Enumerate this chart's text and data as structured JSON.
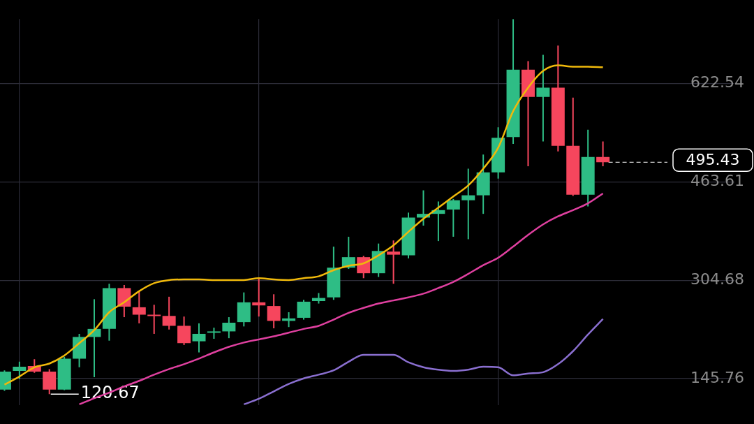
{
  "chart_data": {
    "type": "candlestick",
    "categories": [
      null,
      null,
      null,
      null,
      null,
      null,
      null,
      null,
      null,
      null,
      null,
      null,
      null,
      null,
      null,
      null,
      null,
      null,
      null,
      null,
      null,
      null,
      null,
      null,
      null,
      null,
      null,
      null,
      null,
      null,
      null,
      null,
      null,
      null,
      null,
      null,
      null,
      null,
      null,
      null,
      null
    ],
    "ohlc": [
      [
        128,
        159,
        126,
        157
      ],
      [
        158,
        173,
        145,
        165
      ],
      [
        166,
        177,
        155,
        157
      ],
      [
        157,
        161,
        120.67,
        128
      ],
      [
        128,
        181,
        127,
        178
      ],
      [
        178,
        218,
        164,
        213
      ],
      [
        213,
        274,
        148,
        226
      ],
      [
        226,
        299,
        207,
        292
      ],
      [
        292,
        297,
        245,
        262
      ],
      [
        261,
        288,
        235,
        249
      ],
      [
        249,
        265,
        218,
        247
      ],
      [
        247,
        278,
        225,
        231
      ],
      [
        231,
        246,
        200,
        203
      ],
      [
        206,
        235,
        188,
        218
      ],
      [
        220,
        228,
        210,
        222
      ],
      [
        222,
        245,
        211,
        236
      ],
      [
        237,
        285,
        230,
        269
      ],
      [
        269,
        309,
        246,
        264
      ],
      [
        263,
        282,
        227,
        239
      ],
      [
        239,
        253,
        229,
        243
      ],
      [
        244,
        273,
        241,
        270
      ],
      [
        271,
        284,
        267,
        276
      ],
      [
        277,
        359,
        273,
        325
      ],
      [
        325,
        375,
        323,
        342
      ],
      [
        342,
        344,
        308,
        316
      ],
      [
        316,
        364,
        310,
        352
      ],
      [
        351,
        369,
        299,
        346
      ],
      [
        345,
        414,
        340,
        406
      ],
      [
        406,
        450,
        393,
        412
      ],
      [
        412,
        432,
        368,
        418
      ],
      [
        419,
        436,
        375,
        434
      ],
      [
        434,
        485,
        371,
        442
      ],
      [
        442,
        508,
        412,
        479
      ],
      [
        479,
        552,
        469,
        535
      ],
      [
        536,
        727,
        525,
        645
      ],
      [
        645,
        659,
        489,
        601
      ],
      [
        601,
        669,
        529,
        616
      ],
      [
        616,
        684,
        513,
        522
      ],
      [
        522,
        600,
        441,
        443
      ],
      [
        443,
        548,
        424,
        504
      ],
      [
        504,
        529,
        489,
        495.43
      ]
    ],
    "colors": [
      "#2ebd85",
      "#2ebd85",
      "#f6465d",
      "#f6465d",
      "#2ebd85",
      "#2ebd85",
      "#2ebd85",
      "#2ebd85",
      "#f6465d",
      "#f6465d",
      "#f6465d",
      "#f6465d",
      "#f6465d",
      "#2ebd85",
      "#2ebd85",
      "#2ebd85",
      "#2ebd85",
      "#f6465d",
      "#f6465d",
      "#2ebd85",
      "#2ebd85",
      "#2ebd85",
      "#2ebd85",
      "#2ebd85",
      "#f6465d",
      "#2ebd85",
      "#f6465d",
      "#2ebd85",
      "#2ebd85",
      "#2ebd85",
      "#2ebd85",
      "#2ebd85",
      "#2ebd85",
      "#2ebd85",
      "#2ebd85",
      "#f6465d",
      "#2ebd85",
      "#f6465d",
      "#f6465d",
      "#2ebd85",
      "#f6465d"
    ],
    "series": [
      {
        "type": "line",
        "color": "#f0b90b",
        "values": [
          136,
          149,
          164,
          170,
          183,
          203,
          224,
          253,
          269,
          287,
          300,
          305,
          306,
          306,
          305,
          305,
          305,
          308,
          306,
          305,
          308,
          311,
          321,
          328,
          332,
          345,
          361,
          383,
          404,
          422,
          440,
          458,
          485,
          519,
          578,
          616,
          643,
          652,
          650,
          650,
          649
        ]
      },
      {
        "type": "line",
        "color": "#e040a0",
        "values": [
          null,
          null,
          null,
          null,
          null,
          104,
          114,
          123,
          133,
          142,
          152,
          161,
          169,
          178,
          188,
          197,
          204,
          209,
          214,
          220,
          226,
          231,
          241,
          252,
          260,
          267,
          272,
          277,
          283,
          292,
          302,
          315,
          329,
          341,
          359,
          378,
          395,
          408,
          418,
          429,
          445
        ]
      },
      {
        "type": "line",
        "color": "#8a6fd0",
        "values": [
          null,
          null,
          null,
          null,
          null,
          null,
          null,
          null,
          null,
          null,
          null,
          null,
          null,
          null,
          null,
          null,
          104,
          113,
          125,
          137,
          146,
          152,
          159,
          173,
          184,
          184,
          184,
          172,
          164,
          160,
          158,
          160,
          165,
          164,
          151,
          154,
          156,
          169,
          190,
          217,
          242
        ]
      }
    ],
    "ylim": [
      103,
      727
    ],
    "yticks": [
      145.76,
      304.68,
      463.61,
      622.54
    ],
    "grid": true,
    "ref_lines": [
      {
        "axis": "y",
        "value": 495.43,
        "label": "495.43",
        "color": "#ffffff",
        "line_style": "dashed"
      }
    ],
    "annotations": [
      {
        "text": "120.67",
        "y": 120.67
      }
    ]
  }
}
